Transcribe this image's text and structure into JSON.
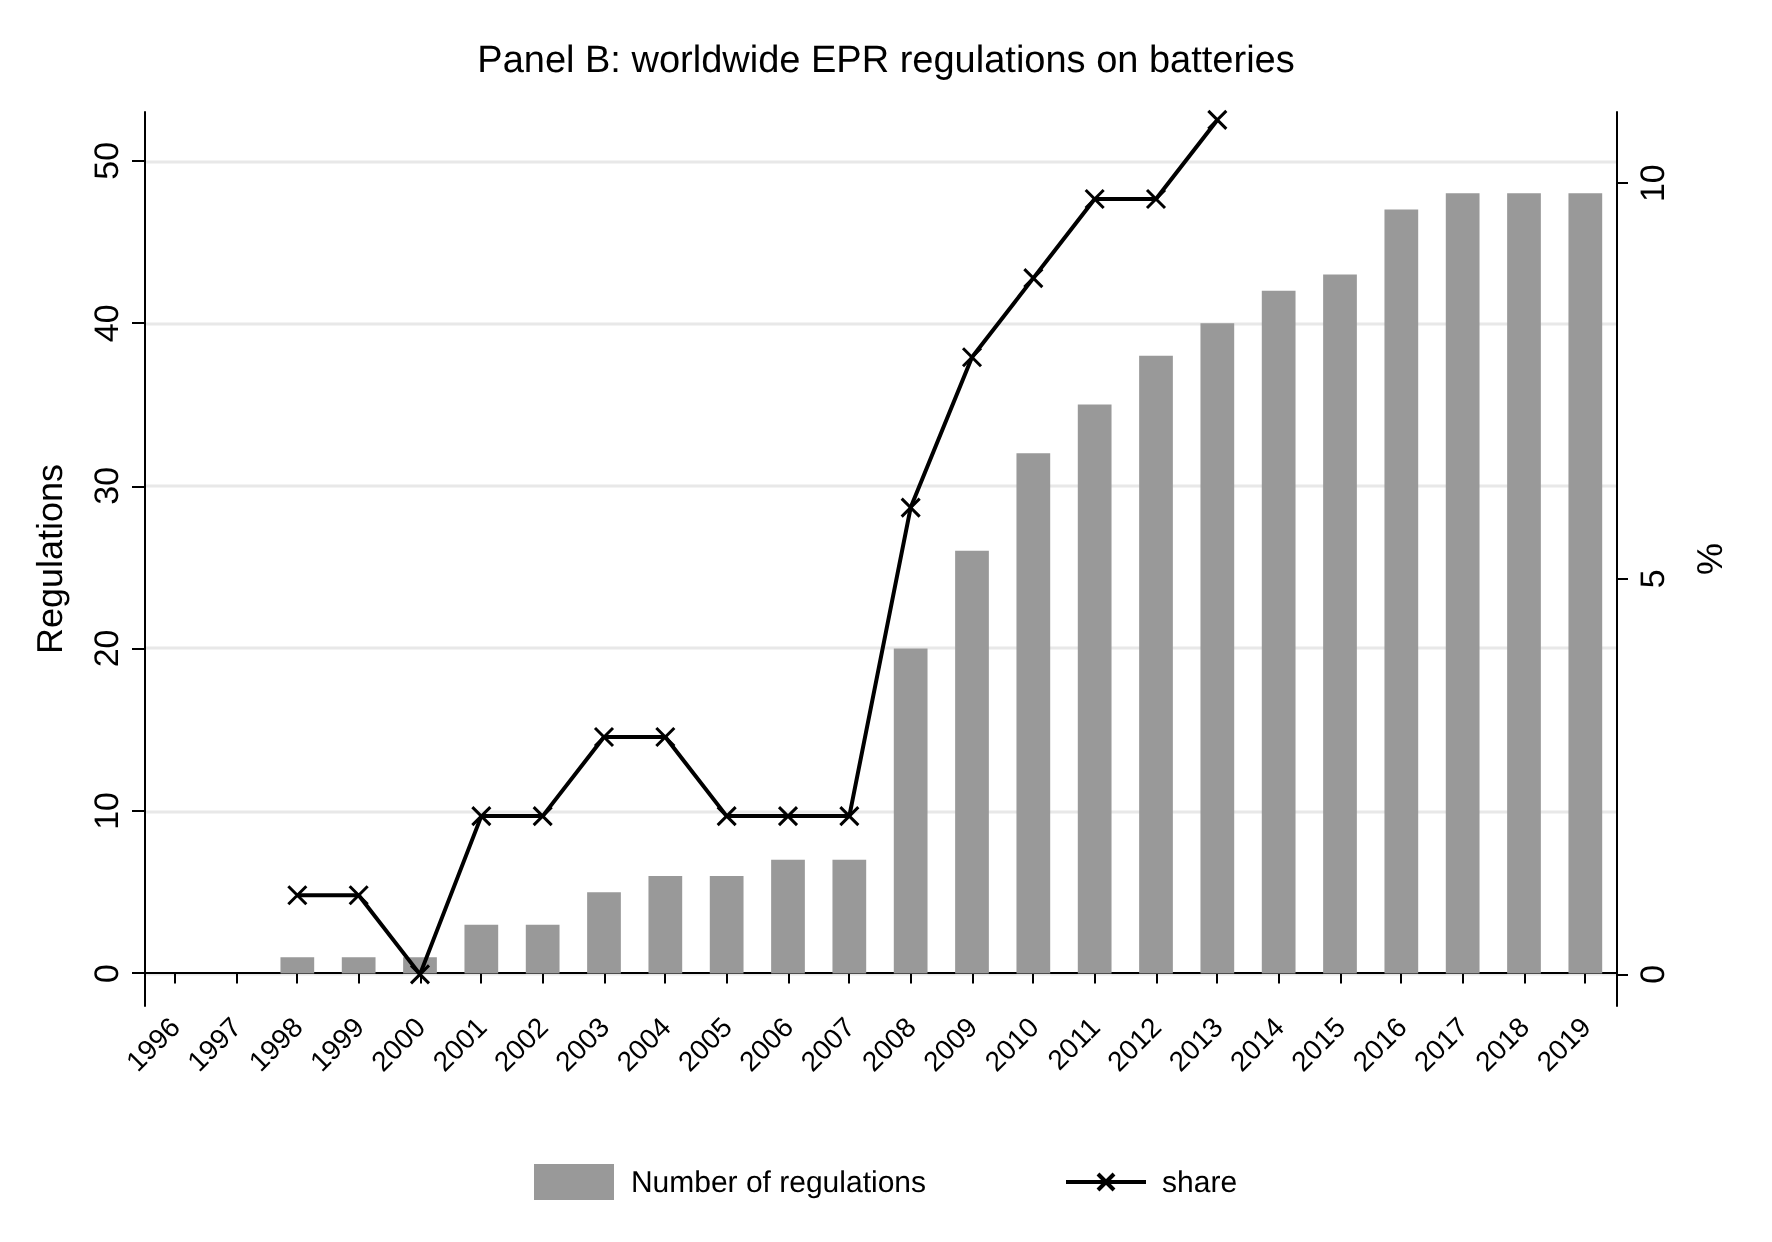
{
  "chart_data": {
    "type": "bar",
    "title": "Panel B: worldwide EPR regulations on batteries",
    "ylabel": "Regulations",
    "y2label": "%",
    "categories": [
      "1996",
      "1997",
      "1998",
      "1999",
      "2000",
      "2001",
      "2002",
      "2003",
      "2004",
      "2005",
      "2006",
      "2007",
      "2008",
      "2009",
      "2010",
      "2011",
      "2012",
      "2013",
      "2014",
      "2015",
      "2016",
      "2017",
      "2018",
      "2019"
    ],
    "series": [
      {
        "name": "Number of regulations",
        "color": "#999999",
        "values": [
          0,
          0,
          1,
          1,
          1,
          3,
          3,
          5,
          6,
          6,
          7,
          7,
          20,
          26,
          32,
          35,
          38,
          40,
          42,
          43,
          47,
          48,
          48,
          48
        ]
      },
      {
        "name": "share",
        "type": "line",
        "axis": "y2",
        "color": "#000000",
        "marker": "cross",
        "values": [
          null,
          null,
          1,
          1,
          0,
          2,
          2,
          3,
          3,
          2,
          2,
          2,
          5.9,
          7.8,
          8.8,
          9.8,
          9.8,
          10.8,
          null,
          null,
          null,
          null,
          null,
          null
        ]
      }
    ],
    "ylim": [
      -2,
      53
    ],
    "yticks": [
      0,
      10,
      20,
      30,
      40,
      50
    ],
    "y2lim": [
      -0.4,
      10.9
    ],
    "y2ticks": [
      0,
      5,
      10
    ],
    "grid": "y",
    "legend": "bottom"
  }
}
